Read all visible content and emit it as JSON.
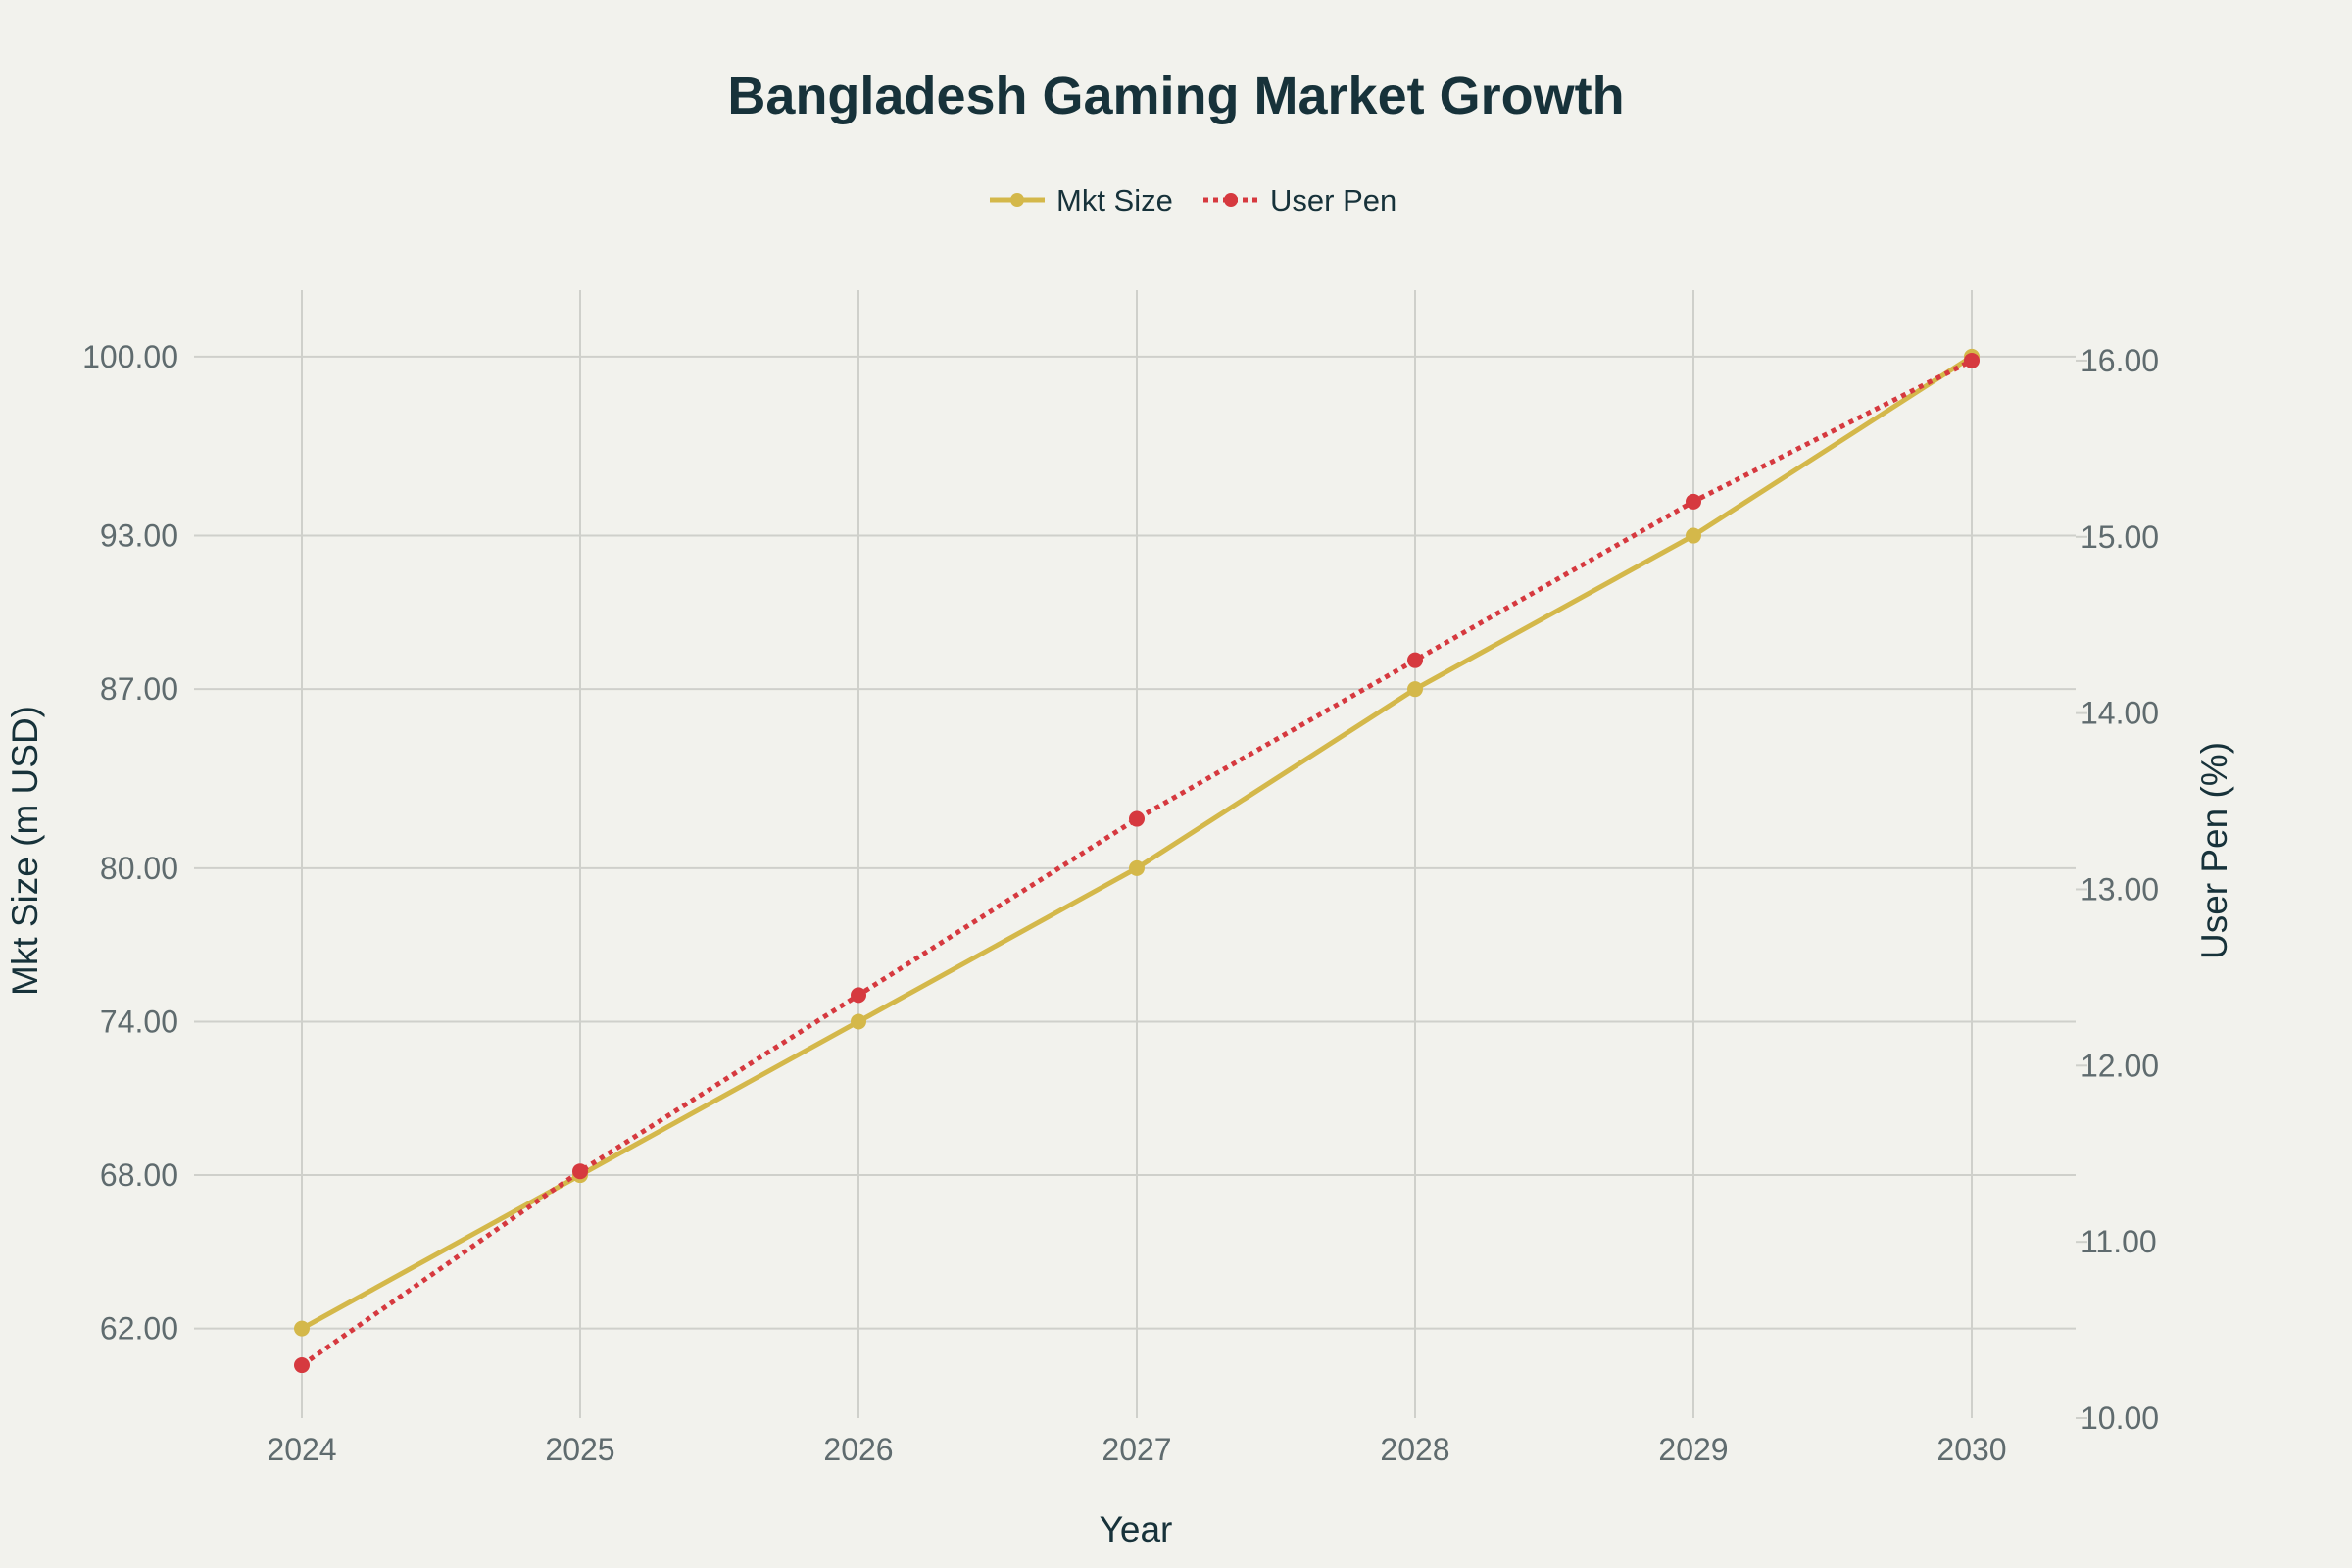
{
  "chart_data": {
    "type": "line",
    "title": "Bangladesh Gaming Market Growth",
    "xlabel": "Year",
    "ylabel_left": "Mkt Size (m USD)",
    "ylabel_right": "User Pen (%)",
    "x": [
      "2024",
      "2025",
      "2026",
      "2027",
      "2028",
      "2029",
      "2030"
    ],
    "y_left_ticks": [
      "62.00",
      "68.00",
      "74.00",
      "80.00",
      "87.00",
      "93.00",
      "100.00"
    ],
    "y_left_tickvals": [
      62,
      68,
      74,
      80,
      87,
      93,
      100
    ],
    "y_left_range": [
      58.5,
      102.6
    ],
    "y_right_ticks": [
      "10.00",
      "11.00",
      "12.00",
      "13.00",
      "14.00",
      "15.00",
      "16.00"
    ],
    "y_right_tickvals": [
      10,
      11,
      12,
      13,
      14,
      15,
      16
    ],
    "y_right_range": [
      10,
      16.4
    ],
    "grid": true,
    "legend_position": "top-center",
    "series": [
      {
        "name": "Mkt Size",
        "axis": "left",
        "color": "#d4b84a",
        "style": "solid",
        "values": [
          62,
          68,
          74,
          80,
          87,
          93,
          100
        ]
      },
      {
        "name": "User Pen",
        "axis": "right",
        "color": "#d6393f",
        "style": "dotted",
        "values": [
          10.3,
          11.4,
          12.4,
          13.4,
          14.3,
          15.2,
          16.0
        ]
      }
    ]
  }
}
